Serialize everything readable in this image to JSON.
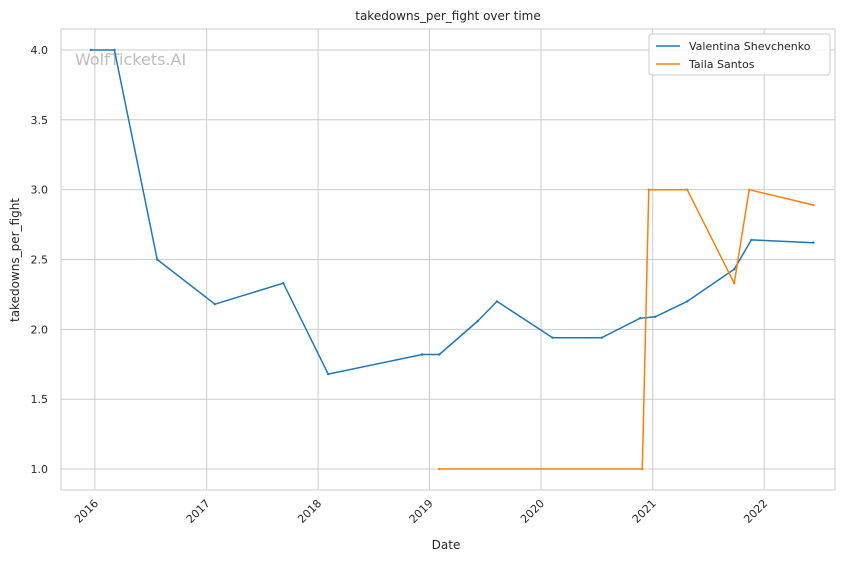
{
  "chart_data": {
    "type": "line",
    "title": "takedowns_per_fight over time",
    "xlabel": "Date",
    "ylabel": "takedowns_per_fight",
    "watermark": "WolfTickets.AI",
    "x_range": [
      "2015-09-12",
      "2022-08-21"
    ],
    "ylim": [
      0.85,
      4.15
    ],
    "grid": true,
    "legend_position": "top-right",
    "x_ticks": [
      {
        "label": "2016",
        "date": "2016-01-01"
      },
      {
        "label": "2017",
        "date": "2017-01-01"
      },
      {
        "label": "2018",
        "date": "2018-01-01"
      },
      {
        "label": "2019",
        "date": "2019-01-01"
      },
      {
        "label": "2020",
        "date": "2020-01-01"
      },
      {
        "label": "2021",
        "date": "2021-01-01"
      },
      {
        "label": "2022",
        "date": "2022-01-01"
      }
    ],
    "y_ticks": [
      {
        "label": "1.0",
        "value": 1.0
      },
      {
        "label": "1.5",
        "value": 1.5
      },
      {
        "label": "2.0",
        "value": 2.0
      },
      {
        "label": "2.5",
        "value": 2.5
      },
      {
        "label": "3.0",
        "value": 3.0
      },
      {
        "label": "3.5",
        "value": 3.5
      },
      {
        "label": "4.0",
        "value": 4.0
      }
    ],
    "series": [
      {
        "name": "Valentina Shevchenko",
        "color": "#1f77b4",
        "points": [
          {
            "x": "2015-12-19",
            "y": 4.0
          },
          {
            "x": "2016-03-05",
            "y": 4.0
          },
          {
            "x": "2016-07-23",
            "y": 2.5
          },
          {
            "x": "2017-01-28",
            "y": 2.18
          },
          {
            "x": "2017-09-09",
            "y": 2.33
          },
          {
            "x": "2018-02-03",
            "y": 1.68
          },
          {
            "x": "2018-12-08",
            "y": 1.82
          },
          {
            "x": "2019-02-02",
            "y": 1.82
          },
          {
            "x": "2019-06-08",
            "y": 2.06
          },
          {
            "x": "2019-08-10",
            "y": 2.2
          },
          {
            "x": "2020-02-08",
            "y": 1.94
          },
          {
            "x": "2020-07-18",
            "y": 1.94
          },
          {
            "x": "2020-11-21",
            "y": 2.08
          },
          {
            "x": "2021-01-09",
            "y": 2.09
          },
          {
            "x": "2021-04-24",
            "y": 2.2
          },
          {
            "x": "2021-09-25",
            "y": 2.43
          },
          {
            "x": "2021-11-20",
            "y": 2.64
          },
          {
            "x": "2022-06-11",
            "y": 2.62
          }
        ]
      },
      {
        "name": "Taila Santos",
        "color": "#ff7f0e",
        "points": [
          {
            "x": "2019-02-02",
            "y": 1.0
          },
          {
            "x": "2020-11-28",
            "y": 1.0
          },
          {
            "x": "2020-12-19",
            "y": 3.0
          },
          {
            "x": "2021-04-24",
            "y": 3.0
          },
          {
            "x": "2021-09-25",
            "y": 2.33
          },
          {
            "x": "2021-11-13",
            "y": 3.0
          },
          {
            "x": "2022-06-11",
            "y": 2.89
          }
        ]
      }
    ]
  }
}
